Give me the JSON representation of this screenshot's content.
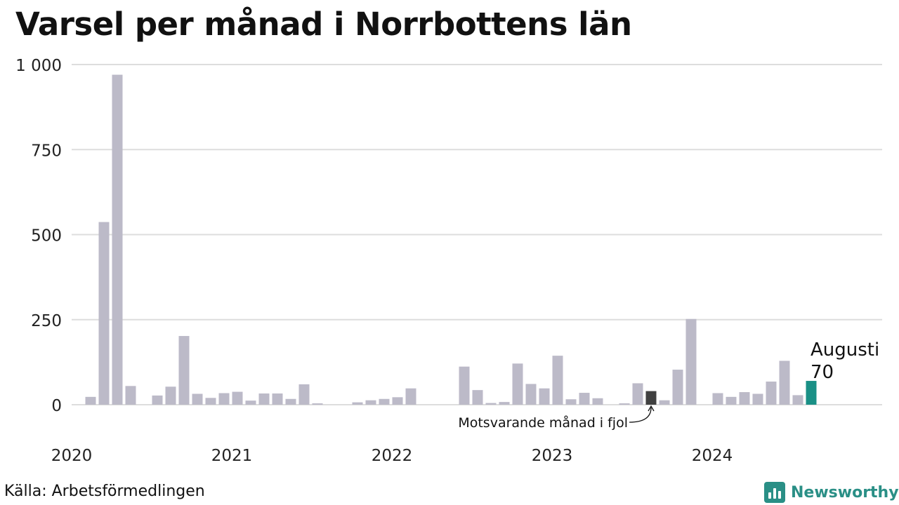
{
  "title": "Varsel per månad i Norrbottens län",
  "source": "Källa: Arbetsförmedlingen",
  "brand": "Newsworthy",
  "colors": {
    "bar": "#bcbac8",
    "highlight_previous": "#404040",
    "highlight_current": "#1a9086",
    "grid": "#dddddd",
    "brand": "#2a8f86"
  },
  "chart_data": {
    "type": "bar",
    "title": "Varsel per månad i Norrbottens län",
    "xlabel": "",
    "ylabel": "",
    "ylim": [
      0,
      1000
    ],
    "y_ticks": [
      0,
      250,
      500,
      750,
      1000
    ],
    "y_tick_labels": [
      "0",
      "250",
      "500",
      "750",
      "1 000"
    ],
    "x_start": "2020-01",
    "x_tick_labels": [
      {
        "label": "2020",
        "month": "2020-01"
      },
      {
        "label": "2021",
        "month": "2021-01"
      },
      {
        "label": "2022",
        "month": "2022-01"
      },
      {
        "label": "2023",
        "month": "2023-01"
      },
      {
        "label": "2024",
        "month": "2024-01"
      }
    ],
    "grid": true,
    "values": [
      0,
      23,
      537,
      970,
      55,
      0,
      27,
      53,
      202,
      32,
      20,
      34,
      38,
      12,
      33,
      33,
      17,
      60,
      4,
      0,
      0,
      7,
      13,
      17,
      22,
      48,
      0,
      0,
      0,
      112,
      43,
      5,
      8,
      121,
      61,
      48,
      144,
      16,
      35,
      19,
      0,
      4,
      63,
      40,
      13,
      103,
      252,
      0,
      34,
      23,
      37,
      32,
      68,
      129,
      28,
      70
    ],
    "highlight_previous_index": 43,
    "highlight_current_index": 55,
    "annotations": {
      "current_month": "Augusti",
      "current_value": "70",
      "previous_year": "Motsvarande månad i fjol"
    }
  }
}
